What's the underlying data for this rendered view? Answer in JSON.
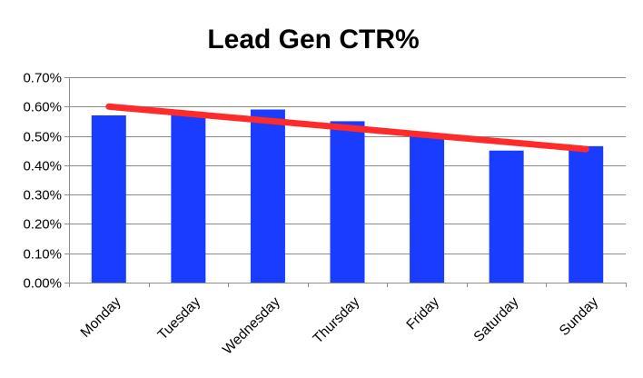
{
  "chart_data": {
    "type": "bar",
    "title": "Lead Gen CTR%",
    "xlabel": "",
    "ylabel": "",
    "categories": [
      "Monday",
      "Tuesday",
      "Wednesday",
      "Thursday",
      "Friday",
      "Saturday",
      "Sunday"
    ],
    "series": [
      {
        "values": [
          0.57,
          0.58,
          0.59,
          0.55,
          0.5,
          0.45,
          0.465
        ],
        "color": "#1a3cff"
      }
    ],
    "trendline": {
      "type": "linear",
      "start": 0.6,
      "end": 0.455,
      "color": "#ff2a2a"
    },
    "ylim": [
      0,
      0.7
    ],
    "y_ticks": [
      "0.00%",
      "0.10%",
      "0.20%",
      "0.30%",
      "0.40%",
      "0.50%",
      "0.60%",
      "0.70%"
    ],
    "grid": true,
    "legend": "none"
  }
}
